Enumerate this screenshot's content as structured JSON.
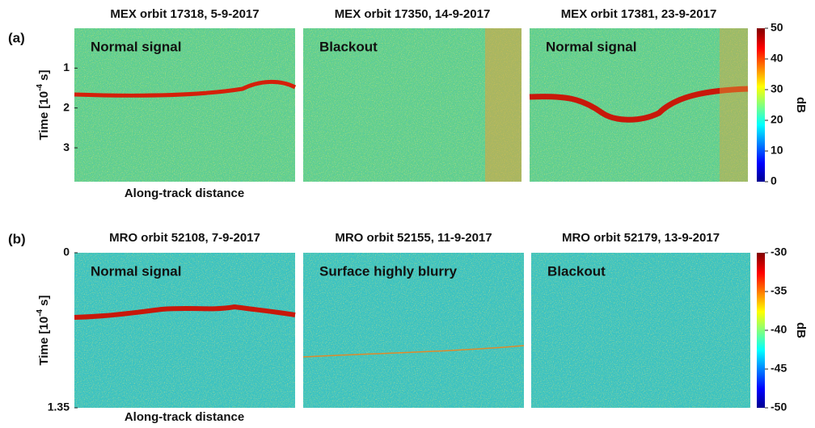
{
  "chart_data": [
    {
      "type": "radargram",
      "label": "(a)",
      "ylabel": {
        "text": "Time [10",
        "exp": "-4",
        "unit": " s]"
      },
      "xlabel": "Along-track distance",
      "ylim": [
        0,
        3.85
      ],
      "yticks": [
        1,
        2,
        3
      ],
      "panels": [
        {
          "title": "MEX orbit 17318, 5-9-2017",
          "annotation": "Normal signal"
        },
        {
          "title": "MEX orbit 17350, 14-9-2017",
          "annotation": "Blackout"
        },
        {
          "title": "MEX orbit 17381, 23-9-2017",
          "annotation": "Normal signal"
        }
      ],
      "colorbar": {
        "label": "dB",
        "clim": [
          0,
          50
        ],
        "ticks": [
          0,
          10,
          20,
          30,
          40,
          50
        ]
      }
    },
    {
      "type": "radargram",
      "label": "(b)",
      "ylabel": {
        "text": "Time [10",
        "exp": "-4",
        "unit": " s]"
      },
      "xlabel": "Along-track distance",
      "ylim": [
        0,
        1.35
      ],
      "yticks": [
        0,
        1.35
      ],
      "panels": [
        {
          "title": "MRO orbit 52108, 7-9-2017",
          "annotation": "Normal signal"
        },
        {
          "title": "MRO orbit 52155, 11-9-2017",
          "annotation": "Surface highly blurry"
        },
        {
          "title": "MRO orbit 52179, 13-9-2017",
          "annotation": "Blackout"
        }
      ],
      "colorbar": {
        "label": "dB",
        "clim": [
          -50,
          -30
        ],
        "ticks": [
          -50,
          -45,
          -40,
          -35,
          -30
        ]
      }
    }
  ]
}
